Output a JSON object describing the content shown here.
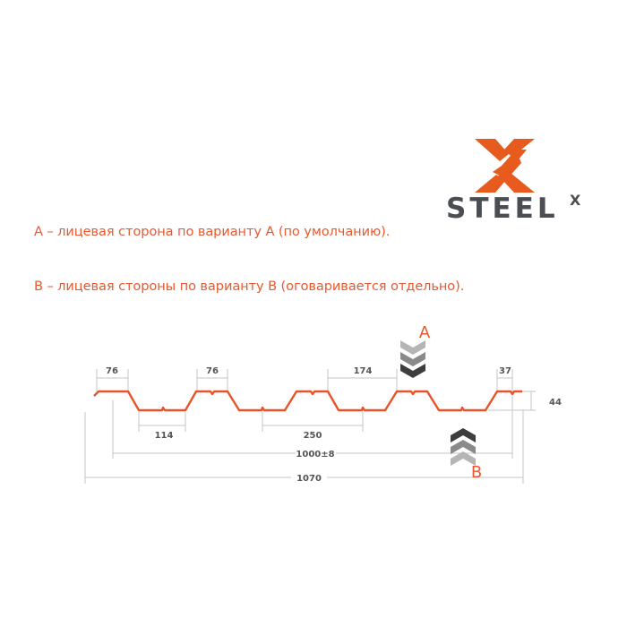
{
  "logo": {
    "text": "STEEL",
    "superscript": "X",
    "brand_color": "#e85b1e",
    "text_color": "#4a4d52"
  },
  "notes": {
    "a": "А – лицевая сторона по варианту А (по умолчанию).",
    "b": "В – лицевая стороны по варианту В (оговаривается отдельно)."
  },
  "profile": {
    "color": "#e9532a",
    "dimensions": {
      "top_left": "76",
      "top_mid": "76",
      "rib_span": "174",
      "edge": "37",
      "height": "44",
      "bottom": "114",
      "pitch": "250",
      "useful_width": "1000±8",
      "total_width": "1070"
    },
    "side_a": "A",
    "side_b": "B"
  }
}
